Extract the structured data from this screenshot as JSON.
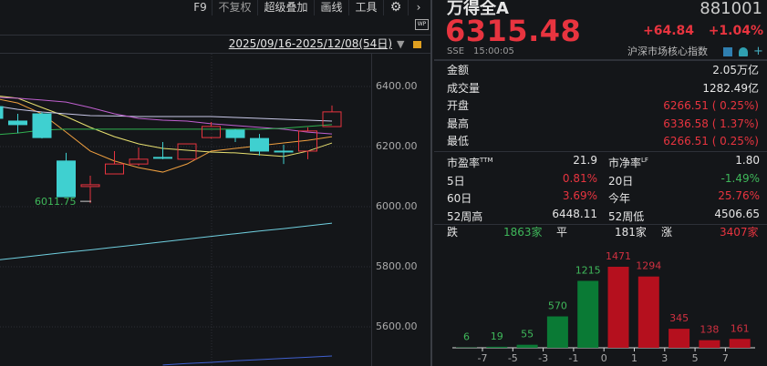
{
  "toolbar": {
    "items": [
      "F9",
      "不复权",
      "超级叠加",
      "画线",
      "工具"
    ],
    "gear": "gear-icon",
    "more": "chevron-right-icon",
    "wp": "WP"
  },
  "chart": {
    "date_range": "2025/09/16-2025/12/08(54日)",
    "y_ticks": [
      "6400.00",
      "6200.00",
      "6000.00",
      "5800.00",
      "5600.00"
    ],
    "y_tick_values": [
      6400,
      6200,
      6000,
      5800,
      5600
    ],
    "low_label": "6011.75",
    "candles": [
      {
        "o": 6333,
        "c": 6294,
        "h": 6355,
        "l": 6291
      },
      {
        "o": 6285,
        "c": 6273,
        "h": 6309,
        "l": 6245
      },
      {
        "o": 6309,
        "c": 6230,
        "h": 6315,
        "l": 6227
      },
      {
        "o": 6152,
        "c": 6033,
        "h": 6179,
        "l": 6033
      },
      {
        "o": 6067,
        "c": 6073,
        "h": 6103,
        "l": 6011.75
      },
      {
        "o": 6109,
        "c": 6142,
        "h": 6185,
        "l": 6109
      },
      {
        "o": 6142,
        "c": 6158,
        "h": 6197,
        "l": 6136
      },
      {
        "o": 6164,
        "c": 6162,
        "h": 6215,
        "l": 6158
      },
      {
        "o": 6158,
        "c": 6209,
        "h": 6209,
        "l": 6158
      },
      {
        "o": 6230,
        "c": 6267,
        "h": 6282,
        "l": 6227
      },
      {
        "o": 6255,
        "c": 6230,
        "h": 6258,
        "l": 6215
      },
      {
        "o": 6227,
        "c": 6185,
        "h": 6242,
        "l": 6170
      },
      {
        "o": 6185,
        "c": 6183,
        "h": 6206,
        "l": 6142
      },
      {
        "o": 6185,
        "c": 6252,
        "h": 6264,
        "l": 6158
      },
      {
        "o": 6266.51,
        "c": 6315.48,
        "h": 6336.58,
        "l": 6266.51
      }
    ],
    "ma_lines": [
      {
        "color": "#f0a040",
        "values": [
          6361,
          6345,
          6309,
          6248,
          6185,
          6152,
          6130,
          6115,
          6142,
          6185,
          6194,
          6203,
          6212,
          6221,
          6233
        ]
      },
      {
        "color": "#e8e070",
        "values": [
          6370,
          6361,
          6330,
          6300,
          6264,
          6233,
          6209,
          6194,
          6188,
          6182,
          6179,
          6173,
          6167,
          6185,
          6212
        ]
      },
      {
        "color": "#c8c8e8",
        "values": [
          6336,
          6324,
          6315,
          6309,
          6303,
          6302,
          6300,
          6300,
          6300,
          6300,
          6297,
          6294,
          6291,
          6288,
          6285
        ]
      },
      {
        "color": "#c060d0",
        "values": [
          6364,
          6361,
          6355,
          6348,
          6330,
          6309,
          6294,
          6288,
          6285,
          6276,
          6270,
          6264,
          6258,
          6248,
          6242
        ]
      },
      {
        "color": "#30b050",
        "values": [
          6239,
          6245,
          6255,
          6258,
          6258,
          6258,
          6258,
          6258,
          6258,
          6258,
          6258,
          6258,
          6261,
          6267,
          6273
        ]
      },
      {
        "color": "#70d0e0",
        "values": [
          5821,
          5830,
          5839,
          5848,
          5856,
          5865,
          5874,
          5883,
          5892,
          5901,
          5910,
          5919,
          5927,
          5936,
          5945
        ]
      },
      {
        "color": "#4060d0",
        "values": [
          null,
          null,
          null,
          null,
          null,
          null,
          null,
          5473,
          5478,
          5482,
          5487,
          5491,
          5495,
          5499,
          5503
        ]
      }
    ],
    "up_color": "#e8343f",
    "down_color": "#3fd0d0"
  },
  "quote": {
    "name": "万得全A",
    "code": "881001",
    "price": "6315.48",
    "change": "+64.84",
    "change_pct": "+1.04%",
    "exchange": "SSE",
    "time": "15:00:05",
    "category": "沪深市场核心指数"
  },
  "stats": [
    {
      "label": "金额",
      "value": "2.05万亿"
    },
    {
      "label": "成交量",
      "value": "1282.49亿"
    },
    {
      "label": "开盘",
      "value": "6266.51 (  0.25%)"
    },
    {
      "label": "最高",
      "value": "6336.58 (  1.37%)"
    },
    {
      "label": "最低",
      "value": "6266.51 (  0.25%)"
    }
  ],
  "stats2": [
    {
      "l1": "市盈率",
      "s1": "TTM",
      "v1": "21.9",
      "c1": "white",
      "l2": "市净率",
      "s2": "LF",
      "v2": "1.80",
      "c2": "white"
    },
    {
      "l1": "5日",
      "s1": "",
      "v1": "0.81%",
      "c1": "red",
      "l2": "20日",
      "s2": "",
      "v2": "-1.49%",
      "c2": "green"
    },
    {
      "l1": "60日",
      "s1": "",
      "v1": "3.69%",
      "c1": "red",
      "l2": "今年",
      "s2": "",
      "v2": "25.76%",
      "c2": "red"
    },
    {
      "l1": "52周高",
      "s1": "",
      "v1": "6448.11",
      "c1": "white",
      "l2": "52周低",
      "s2": "",
      "v2": "4506.65",
      "c2": "white"
    }
  ],
  "breadth": {
    "down_label": "跌",
    "down": "1863家",
    "flat_label": "平",
    "flat": "181家",
    "up_label": "涨",
    "up": "3407家"
  },
  "distribution": {
    "ticks": [
      "-7",
      "-5",
      "-3",
      "-1",
      "0",
      "1",
      "3",
      "5",
      "7"
    ],
    "values": [
      6,
      19,
      55,
      570,
      1215,
      1471,
      1294,
      345,
      138,
      161
    ],
    "colors": [
      "#0a7a35",
      "#0a7a35",
      "#0a7a35",
      "#0a7a35",
      "#0a7a35",
      "#b5101e",
      "#b5101e",
      "#b5101e",
      "#b5101e",
      "#b5101e"
    ]
  }
}
